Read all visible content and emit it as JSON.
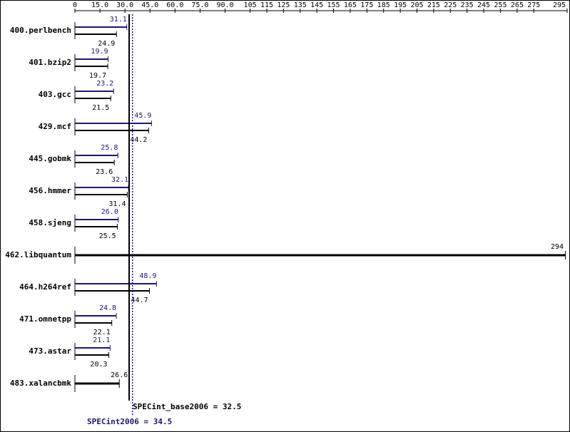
{
  "chart_data": {
    "type": "bar",
    "orientation": "horizontal",
    "categories": [
      "400.perlbench",
      "401.bzip2",
      "403.gcc",
      "429.mcf",
      "445.gobmk",
      "456.hmmer",
      "458.sjeng",
      "462.libquantum",
      "464.h264ref",
      "471.omnetpp",
      "473.astar",
      "483.xalancbmk"
    ],
    "series": [
      {
        "name": "SPECint_base2006",
        "color": "#000000",
        "values": [
          24.9,
          19.7,
          21.5,
          44.2,
          23.6,
          31.4,
          25.5,
          294,
          44.7,
          22.1,
          20.3,
          26.6
        ]
      },
      {
        "name": "SPECint2006",
        "color": "#191970",
        "values": [
          31.1,
          19.9,
          23.2,
          45.9,
          25.8,
          32.1,
          26.0,
          null,
          48.9,
          24.8,
          21.1,
          null
        ],
        "value_labels": [
          "31.1",
          "19.9",
          "23.2",
          "45.9",
          "25.8",
          "32.1",
          "26.0",
          null,
          "48.9",
          "24.8",
          "21.1",
          null
        ]
      }
    ],
    "summary": [
      {
        "label": "SPECint_base2006 = 32.5",
        "value": 32.5,
        "color": "#000000",
        "style": "solid"
      },
      {
        "label": "SPECint2006 = 34.5",
        "value": 34.5,
        "color": "#191970",
        "style": "dotted"
      }
    ],
    "xlim": [
      0,
      295
    ],
    "xticks": [
      0,
      {
        "value": 15,
        "label": "15.0"
      },
      {
        "value": 30,
        "label": "30.0"
      },
      {
        "value": 45,
        "label": "45.0"
      },
      {
        "value": 60,
        "label": "60.0"
      },
      {
        "value": 75,
        "label": "75.0"
      },
      {
        "value": 90,
        "label": "90.0"
      },
      105,
      115,
      125,
      135,
      145,
      155,
      165,
      175,
      185,
      195,
      205,
      215,
      225,
      235,
      245,
      255,
      265,
      275,
      295
    ]
  }
}
